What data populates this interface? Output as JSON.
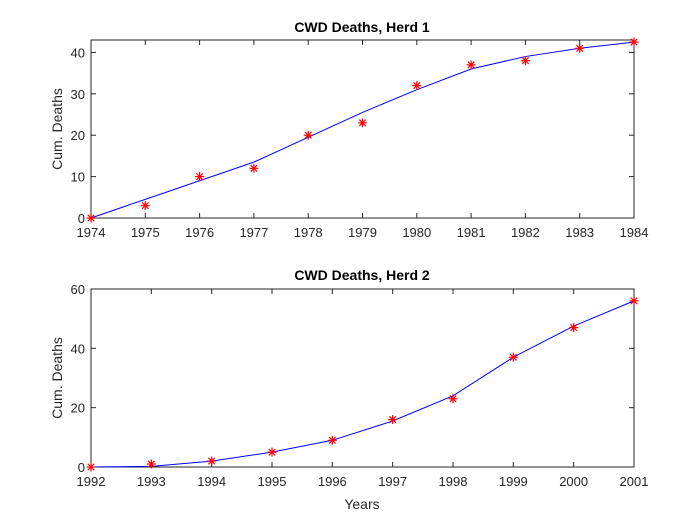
{
  "chart_data": [
    {
      "type": "line",
      "title": "CWD Deaths, Herd 1",
      "xlabel": "",
      "ylabel": "Cum. Deaths",
      "xlim": [
        1974,
        1984
      ],
      "ylim": [
        0,
        43
      ],
      "xticks": [
        1974,
        1975,
        1976,
        1977,
        1978,
        1979,
        1980,
        1981,
        1982,
        1983,
        1984
      ],
      "yticks": [
        0,
        10,
        20,
        30,
        40
      ],
      "grid": false,
      "legend": "none",
      "series": [
        {
          "kind": "markers",
          "marker": "asterisk",
          "color": "#ff0000",
          "x": [
            1974,
            1975,
            1976,
            1977,
            1978,
            1979,
            1980,
            1981,
            1982,
            1983,
            1984
          ],
          "y": [
            0,
            3,
            10,
            12,
            20,
            23,
            32,
            37,
            38,
            41,
            42.5
          ]
        },
        {
          "kind": "line",
          "color": "#0000ff",
          "x": [
            1974,
            1975,
            1976,
            1977,
            1978,
            1979,
            1980,
            1981,
            1982,
            1983,
            1984
          ],
          "y": [
            0,
            4.5,
            9,
            13.5,
            19.5,
            25.5,
            31,
            36,
            39,
            41,
            42.5
          ]
        }
      ]
    },
    {
      "type": "line",
      "title": "CWD Deaths, Herd 2",
      "xlabel": "Years",
      "ylabel": "Cum. Deaths",
      "xlim": [
        1992,
        2001
      ],
      "ylim": [
        0,
        60
      ],
      "xticks": [
        1992,
        1993,
        1994,
        1995,
        1996,
        1997,
        1998,
        1999,
        2000,
        2001
      ],
      "yticks": [
        0,
        20,
        40,
        60
      ],
      "grid": false,
      "legend": "none",
      "series": [
        {
          "kind": "markers",
          "marker": "asterisk",
          "color": "#ff0000",
          "x": [
            1992,
            1993,
            1994,
            1995,
            1996,
            1997,
            1998,
            1999,
            2000,
            2001
          ],
          "y": [
            0,
            1,
            2,
            5,
            9,
            16,
            23,
            37,
            47,
            56
          ]
        },
        {
          "kind": "line",
          "color": "#0000ff",
          "x": [
            1992,
            1993,
            1994,
            1995,
            1996,
            1997,
            1998,
            1999,
            2000,
            2001
          ],
          "y": [
            0,
            0.2,
            2,
            5,
            9,
            15.5,
            24,
            37,
            47.5,
            56
          ]
        }
      ]
    }
  ]
}
